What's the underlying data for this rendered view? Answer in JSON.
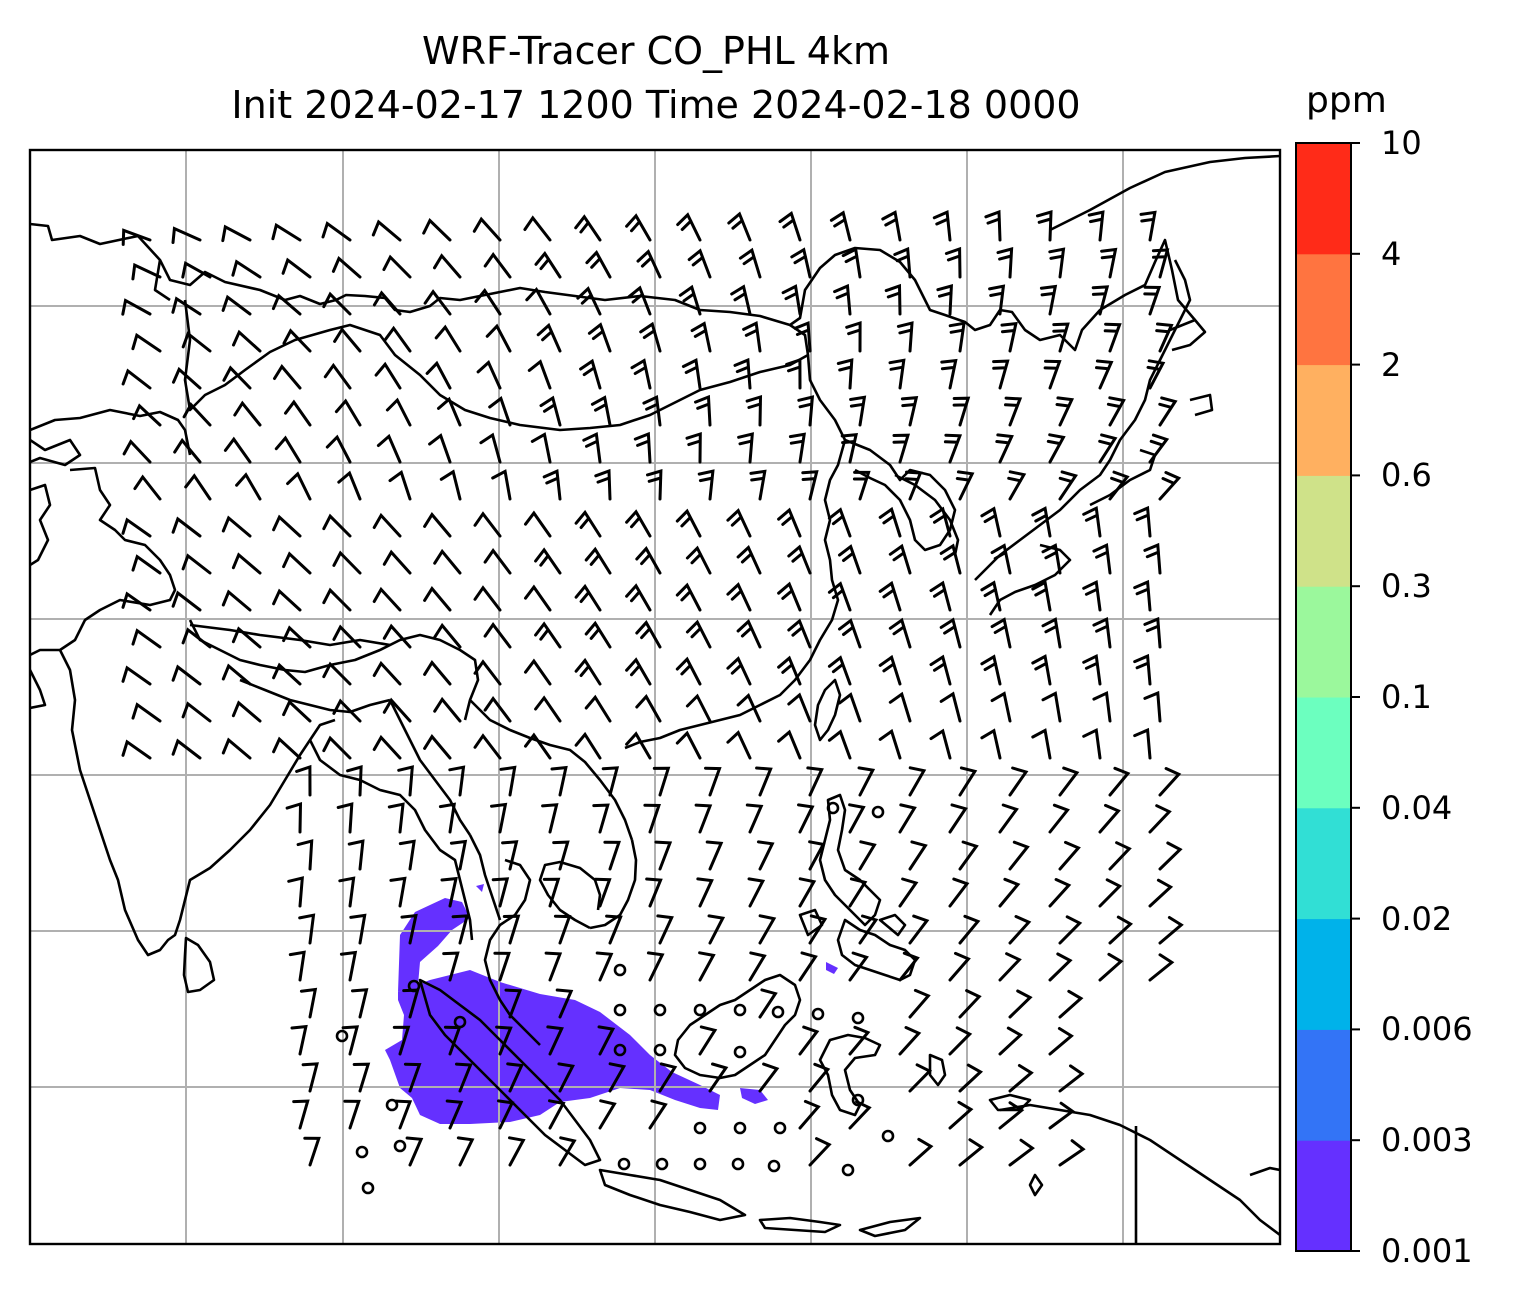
{
  "title_line1": "WRF-Tracer CO_PHL 4km",
  "title_line2": "Init 2024-02-17 1200 Time 2024-02-18 0000",
  "colorbar": {
    "units": "ppm",
    "levels": [
      "0.001",
      "0.003",
      "0.006",
      "0.02",
      "0.04",
      "0.1",
      "0.3",
      "0.6",
      "2",
      "4",
      "10"
    ],
    "colors": [
      "#6530ff",
      "#3374f6",
      "#00b2ea",
      "#31dfd5",
      "#6cffbf",
      "#9bf89c",
      "#cfe289",
      "#ffb060",
      "#ff7440",
      "#ff2b18"
    ]
  },
  "tracer_plume_color": "#6530ff",
  "map": {
    "frame_color": "#000000",
    "gridline_color": "#b0b0b0",
    "coastline_color": "#000000",
    "icons": [
      "wind-barb-icon",
      "calm-circle-icon"
    ]
  }
}
